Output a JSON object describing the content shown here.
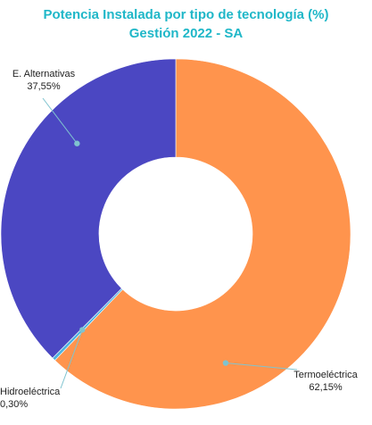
{
  "chart_data": {
    "type": "pie",
    "title": "Potencia Instalada por tipo de tecnología (%)",
    "subtitle": "Gestión 2022 - SA",
    "donut": true,
    "categories": [
      "Termoeléctrica",
      "Hidroeléctrica",
      "E. Alternativas"
    ],
    "values": [
      62.15,
      0.3,
      37.55
    ],
    "value_labels": [
      "62,15%",
      "0,30%",
      "37,55%"
    ],
    "colors": [
      "#ff944d",
      "#4fb3e0",
      "#4b47c2"
    ],
    "legend": "none"
  }
}
